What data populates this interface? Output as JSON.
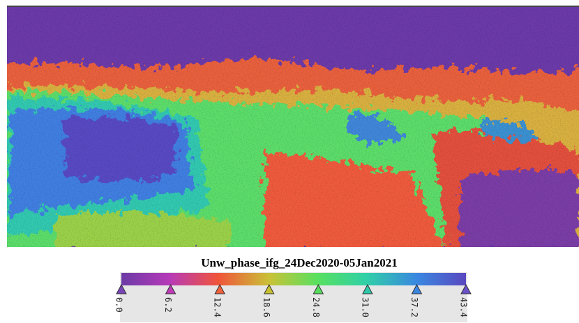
{
  "image": {
    "title": "Unw_phase_ifg_24Dec2020-05Jan2021"
  },
  "colorbar": {
    "ticks": [
      "0.0",
      "6.2",
      "12.4",
      "18.6",
      "24.8",
      "31.0",
      "37.2",
      "43.4"
    ]
  }
}
